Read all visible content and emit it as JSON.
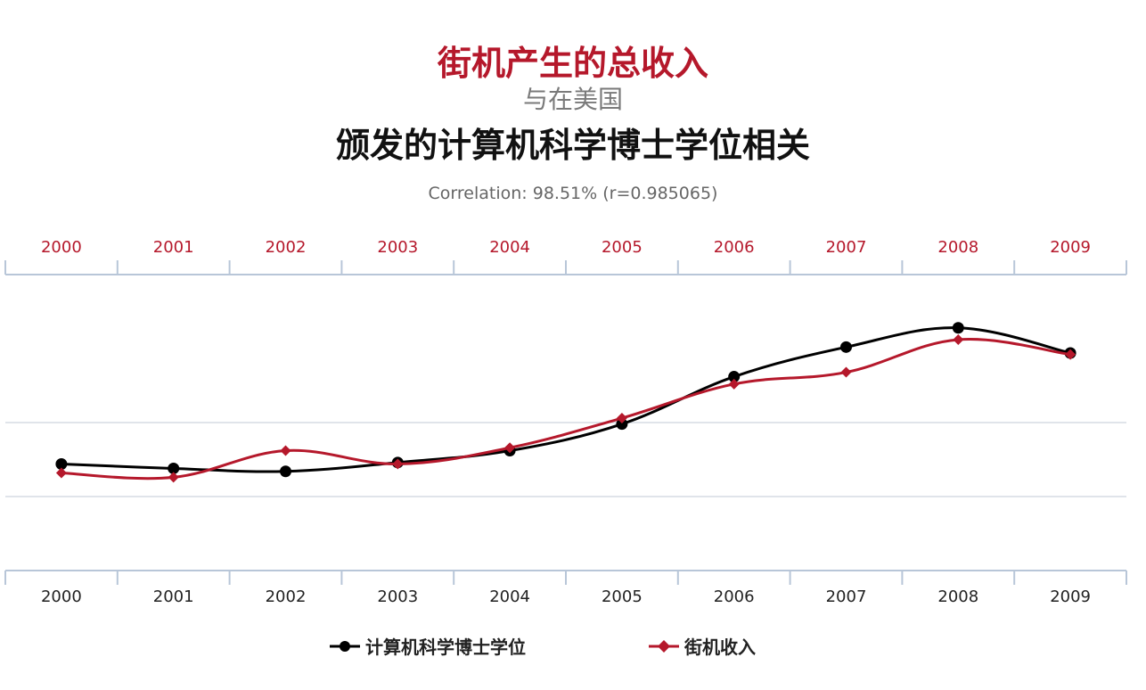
{
  "header": {
    "title_line1": "街机产生的总收入",
    "title_line2": "与在美国",
    "title_line3": "颁发的计算机科学博士学位相关",
    "correlation": "Correlation: 98.51% (r=0.985065)"
  },
  "colors": {
    "series1": "#000000",
    "series2": "#b5182b",
    "top_axis_labels": "#b5182b",
    "bottom_axis_labels": "#222222",
    "grid": "#d5dbe3",
    "axis": "#b8c6d8"
  },
  "legend": {
    "series1_label": "计算机科学博士学位",
    "series2_label": "街机收入"
  },
  "chart_data": {
    "type": "line",
    "x": [
      "2000",
      "2001",
      "2002",
      "2003",
      "2004",
      "2005",
      "2006",
      "2007",
      "2008",
      "2009"
    ],
    "grid": true,
    "legend_position": "bottom",
    "series": [
      {
        "name": "计算机科学博士学位",
        "marker": "circle",
        "values": [
          0.72,
          0.69,
          0.67,
          0.73,
          0.81,
          0.99,
          1.31,
          1.51,
          1.64,
          1.47
        ]
      },
      {
        "name": "街机收入",
        "marker": "diamond",
        "values": [
          0.66,
          0.63,
          0.81,
          0.72,
          0.83,
          1.03,
          1.26,
          1.34,
          1.56,
          1.46
        ]
      }
    ],
    "ylim": [
      0,
      2
    ]
  }
}
